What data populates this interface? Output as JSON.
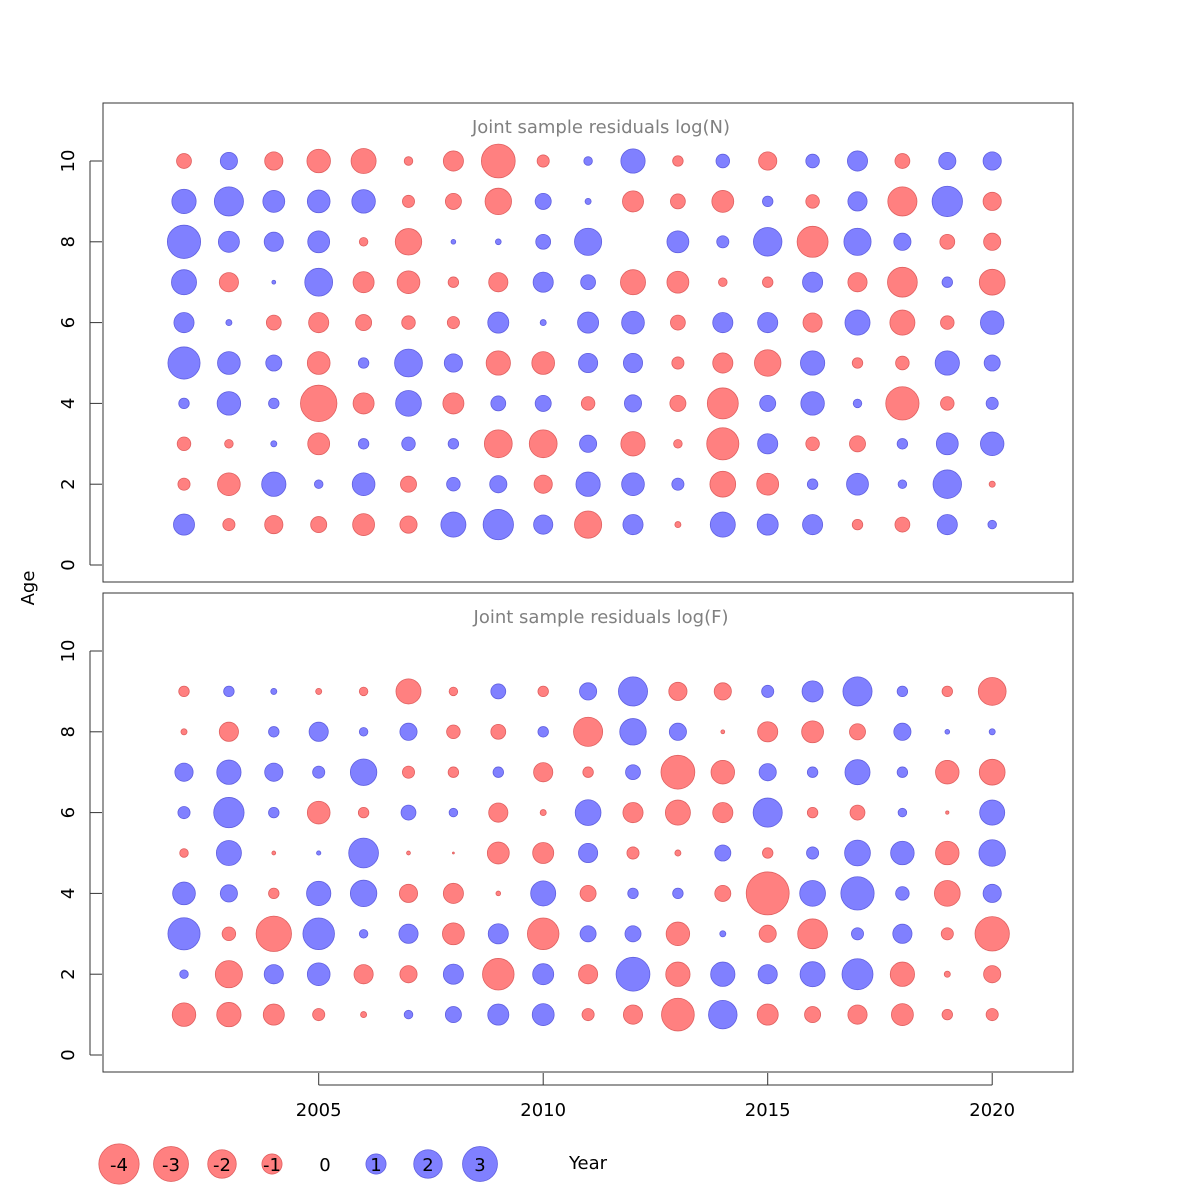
{
  "chart_data": {
    "type": "scatter",
    "subtype": "bubble",
    "colors": {
      "positive": "#8080ff",
      "negative": "#ff8080",
      "positive_edge": "#6060e0",
      "negative_edge": "#e06060"
    },
    "x_label": "Year",
    "y_label": "Age",
    "xlim": [
      2000,
      2022
    ],
    "x_ticks": [
      2005,
      2010,
      2015,
      2020
    ],
    "years": [
      2002,
      2003,
      2004,
      2005,
      2006,
      2007,
      2008,
      2009,
      2010,
      2011,
      2012,
      2013,
      2014,
      2015,
      2016,
      2017,
      2018,
      2019,
      2020
    ],
    "panels": [
      {
        "title": "Joint sample residuals log(N)",
        "ylim": [
          -0.5,
          11.5
        ],
        "y_ticks": [
          0,
          2,
          4,
          6,
          8,
          10
        ],
        "ages": [
          1,
          2,
          3,
          4,
          5,
          6,
          7,
          8,
          9,
          10
        ],
        "residuals": [
          [
            1.2,
            -0.4,
            -0.9,
            -0.7,
            -1.3,
            -0.8,
            1.7,
            2.5,
            1.0,
            -2.0,
            1.1,
            -0.1,
            1.7,
            1.2,
            1.1,
            -0.3,
            -0.6,
            1.1,
            0.2
          ],
          [
            -0.4,
            -1.4,
            1.6,
            0.2,
            1.4,
            -0.7,
            0.5,
            0.8,
            -0.9,
            1.6,
            1.4,
            0.4,
            -1.8,
            -1.3,
            0.3,
            1.3,
            0.2,
            2.2,
            -0.1
          ],
          [
            -0.5,
            -0.2,
            0.1,
            -1.3,
            0.3,
            0.5,
            0.3,
            -2.1,
            -2.1,
            0.8,
            -1.6,
            -0.2,
            -2.8,
            1.1,
            -0.5,
            -0.7,
            0.3,
            1.3,
            1.5
          ],
          [
            0.3,
            1.5,
            0.3,
            -3.6,
            -1.2,
            1.8,
            -1.2,
            0.6,
            0.7,
            -0.5,
            0.8,
            -0.7,
            -2.6,
            0.7,
            1.5,
            0.2,
            -3.0,
            -0.5,
            0.4
          ],
          [
            2.8,
            1.4,
            0.7,
            -1.4,
            0.3,
            2.1,
            0.9,
            -1.6,
            -1.4,
            1.0,
            1.0,
            -0.4,
            -1.1,
            -1.9,
            1.6,
            -0.3,
            -0.5,
            1.6,
            0.7
          ],
          [
            1.1,
            0.1,
            -0.6,
            -1.1,
            -0.7,
            -0.5,
            -0.4,
            1.2,
            0.1,
            1.2,
            1.4,
            -0.6,
            1.1,
            1.1,
            -1.0,
            1.7,
            -1.7,
            -0.5,
            1.5
          ],
          [
            1.7,
            -1.0,
            0.04,
            2.1,
            -1.2,
            -1.4,
            -0.3,
            -1.0,
            1.1,
            0.6,
            -1.7,
            -1.3,
            -0.2,
            -0.3,
            1.1,
            -1.0,
            -2.4,
            0.3,
            -1.8
          ],
          [
            3.0,
            1.2,
            1.0,
            1.3,
            -0.2,
            -1.9,
            0.06,
            0.09,
            0.6,
            2.0,
            0.0,
            1.3,
            0.4,
            2.2,
            -2.6,
            2.0,
            0.8,
            -0.6,
            -0.8
          ],
          [
            1.6,
            2.3,
            1.3,
            1.4,
            1.5,
            -0.4,
            -0.7,
            -1.9,
            0.7,
            0.1,
            -1.2,
            -0.6,
            -1.3,
            0.3,
            -0.5,
            1.0,
            -2.3,
            2.5,
            -0.9
          ],
          [
            -0.6,
            0.8,
            -0.9,
            -1.5,
            -1.7,
            -0.2,
            -1.1,
            -3.1,
            -0.4,
            0.2,
            1.6,
            -0.3,
            0.5,
            -0.9,
            0.5,
            1.1,
            -0.6,
            0.8,
            0.9
          ]
        ]
      },
      {
        "title": "Joint sample residuals log(F)",
        "ylim": [
          -0.5,
          11.5
        ],
        "y_ticks": [
          0,
          2,
          4,
          6,
          8,
          10
        ],
        "ages": [
          1,
          2,
          3,
          4,
          5,
          6,
          7,
          8,
          9
        ],
        "residuals": [
          [
            -1.5,
            -1.6,
            -1.2,
            -0.4,
            -0.1,
            0.2,
            0.7,
            1.2,
            1.3,
            -0.4,
            -1.0,
            -2.9,
            2.2,
            -1.2,
            -0.7,
            -1.0,
            -1.3,
            -0.3,
            -0.4
          ],
          [
            0.2,
            -2.0,
            1.0,
            1.4,
            -1.0,
            -0.8,
            1.1,
            -2.7,
            1.2,
            -1.0,
            3.1,
            -1.6,
            1.6,
            1.0,
            1.7,
            2.6,
            -1.6,
            -0.1,
            -0.8
          ],
          [
            2.8,
            -0.5,
            -3.4,
            2.7,
            0.2,
            1.0,
            -1.3,
            1.1,
            -2.7,
            0.7,
            0.7,
            -1.5,
            0.1,
            -0.8,
            -2.4,
            0.4,
            1.0,
            -0.4,
            -3.2
          ],
          [
            1.4,
            0.8,
            -0.3,
            1.6,
            1.9,
            -0.9,
            -1.1,
            -0.06,
            1.7,
            -0.7,
            0.3,
            0.3,
            -0.7,
            -5.0,
            1.8,
            3.0,
            0.5,
            -1.8,
            0.9
          ],
          [
            -0.2,
            1.7,
            -0.04,
            0.05,
            2.4,
            -0.04,
            -0.01,
            -1.3,
            -1.2,
            1.0,
            -0.4,
            -0.1,
            0.7,
            -0.3,
            0.4,
            1.8,
            1.5,
            -1.5,
            1.9
          ],
          [
            0.4,
            2.5,
            0.3,
            -1.4,
            -0.3,
            0.6,
            0.2,
            -1.0,
            -0.1,
            1.8,
            -1.1,
            -1.7,
            -1.1,
            2.3,
            -0.3,
            -0.6,
            0.2,
            -0.03,
            1.7
          ],
          [
            0.9,
            1.6,
            0.9,
            0.4,
            1.9,
            -0.4,
            -0.3,
            0.3,
            -1.0,
            -0.3,
            0.6,
            -3.1,
            -1.5,
            0.8,
            0.3,
            1.7,
            0.3,
            -1.5,
            -1.8
          ],
          [
            -0.1,
            -1.0,
            0.3,
            1.0,
            0.2,
            0.8,
            -0.5,
            -0.6,
            0.3,
            -2.3,
            1.9,
            0.8,
            -0.04,
            -1.1,
            -1.3,
            -0.7,
            0.8,
            0.06,
            0.1
          ],
          [
            -0.3,
            0.3,
            0.1,
            -0.1,
            -0.2,
            -1.7,
            -0.2,
            0.6,
            -0.3,
            0.8,
            2.3,
            -0.9,
            -0.8,
            0.4,
            1.2,
            2.3,
            0.3,
            -0.3,
            -2.1
          ]
        ]
      }
    ],
    "legend": [
      {
        "value": -4,
        "label": "-4"
      },
      {
        "value": -3,
        "label": "-3"
      },
      {
        "value": -2,
        "label": "-2"
      },
      {
        "value": -1,
        "label": "-1"
      },
      {
        "value": 0,
        "label": "0"
      },
      {
        "value": 1,
        "label": "1"
      },
      {
        "value": 2,
        "label": "2"
      },
      {
        "value": 3,
        "label": "3"
      }
    ]
  }
}
